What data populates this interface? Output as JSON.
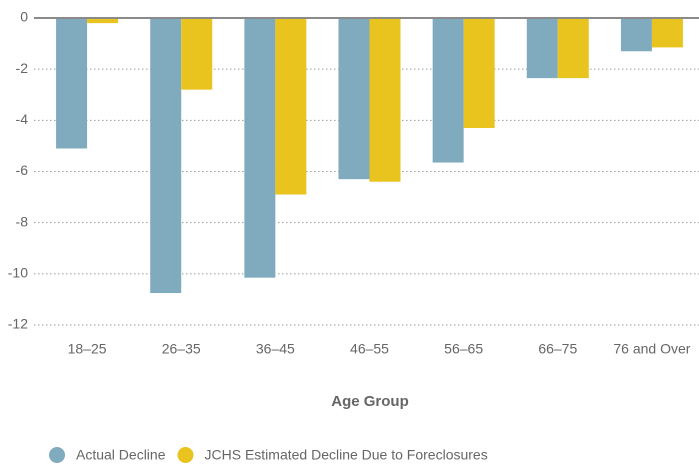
{
  "chart_data": {
    "type": "bar",
    "x_label": "Age Group",
    "categories": [
      "18–25",
      "26–35",
      "36–45",
      "46–55",
      "56–65",
      "66–75",
      "76 and Over"
    ],
    "series": [
      {
        "name": "Actual Decline",
        "color": "#80aabe",
        "values": [
          -5.1,
          -10.75,
          -10.15,
          -6.3,
          -5.65,
          -2.35,
          -1.3
        ]
      },
      {
        "name": "JCHS Estimated Decline Due to Foreclosures",
        "color": "#e9c31e",
        "values": [
          -0.2,
          -2.8,
          -6.9,
          -6.4,
          -4.3,
          -2.35,
          -1.15
        ]
      }
    ],
    "ylim": [
      -12,
      0
    ],
    "yticks": [
      0,
      -2,
      -4,
      -6,
      -8,
      -10,
      -12
    ],
    "grid": true,
    "legend": "bottom-left"
  }
}
